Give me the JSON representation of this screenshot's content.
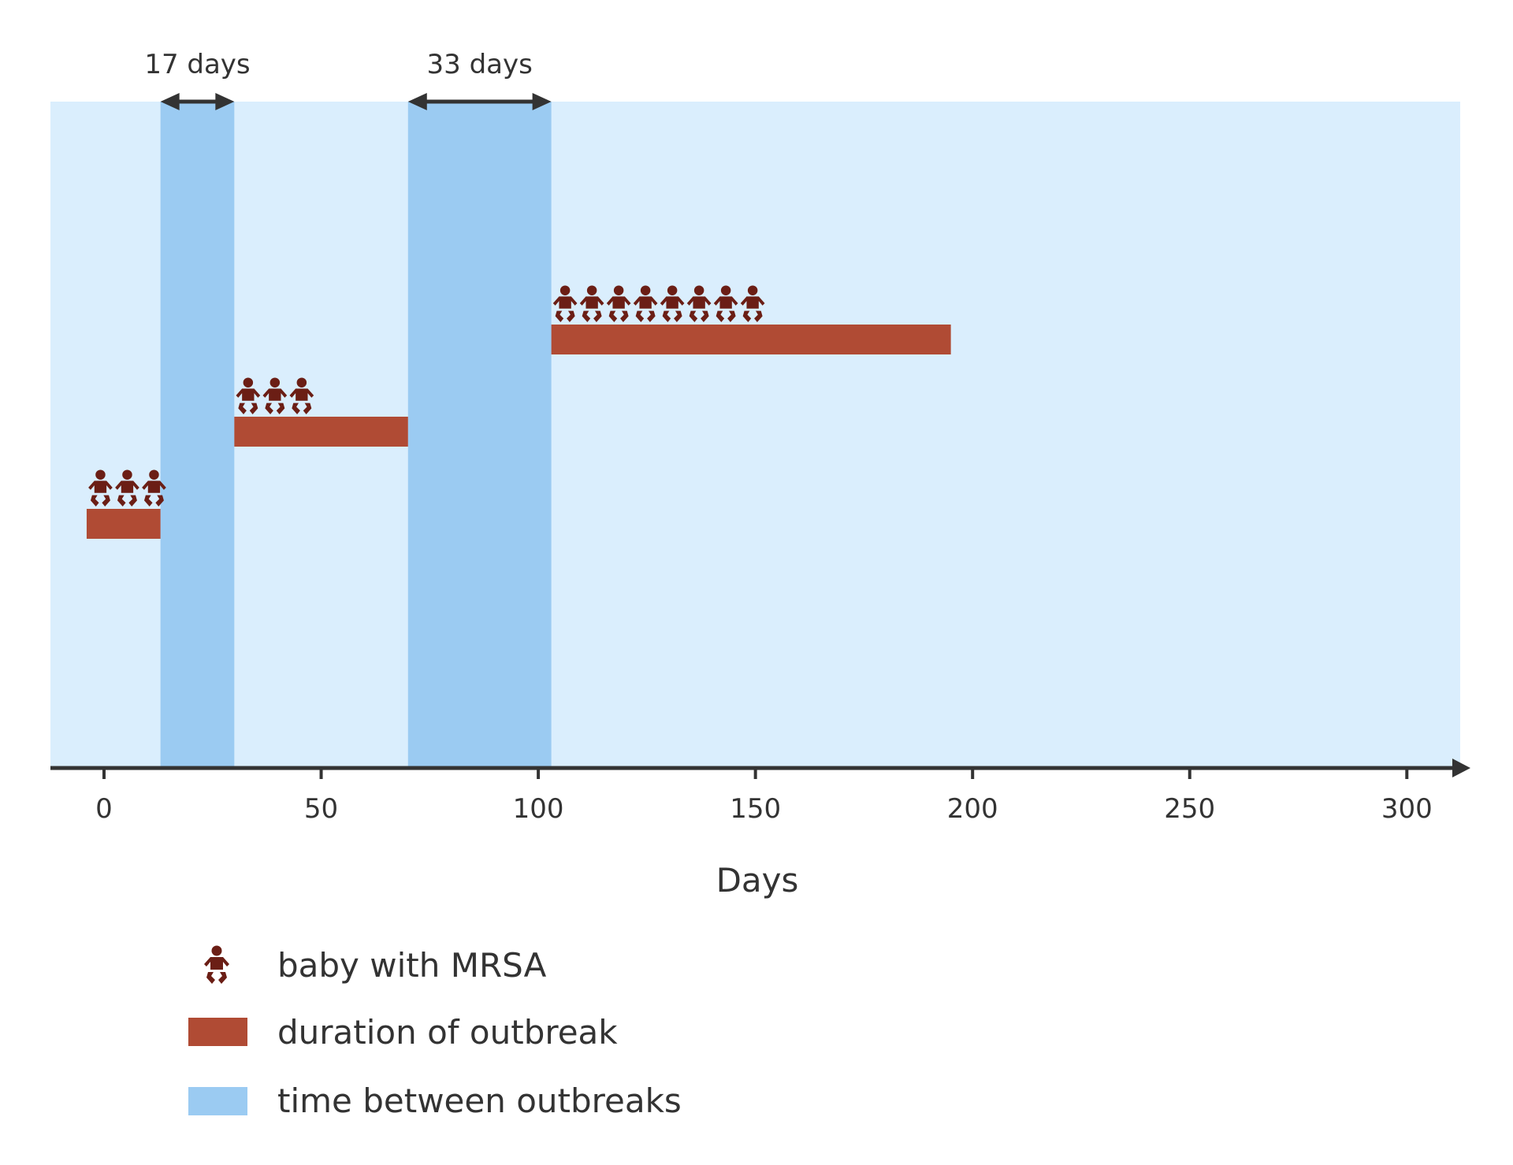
{
  "chart_data": {
    "type": "timeline",
    "xlabel": "Days",
    "xlim": [
      -12,
      313
    ],
    "x_ticks": [
      0,
      50,
      100,
      150,
      200,
      250,
      300
    ],
    "grid": false,
    "outbreaks": [
      {
        "start": -4,
        "end": 13,
        "babies": 3
      },
      {
        "start": 30,
        "end": 70,
        "babies": 3
      },
      {
        "start": 103,
        "end": 195,
        "babies": 8
      }
    ],
    "gaps": [
      {
        "start": 13,
        "end": 30,
        "label": "17 days"
      },
      {
        "start": 70,
        "end": 103,
        "label": "33 days"
      }
    ],
    "legend": {
      "placement": "bottom-left",
      "baby": "baby with MRSA",
      "outbreak": "duration of outbreak",
      "gap": "time between outbreaks"
    }
  },
  "colors": {
    "background": "#daeefd",
    "gap": "#9bcbf2",
    "outbreak": "#b04b34",
    "baby": "#6b1e15",
    "axis": "#333333"
  }
}
